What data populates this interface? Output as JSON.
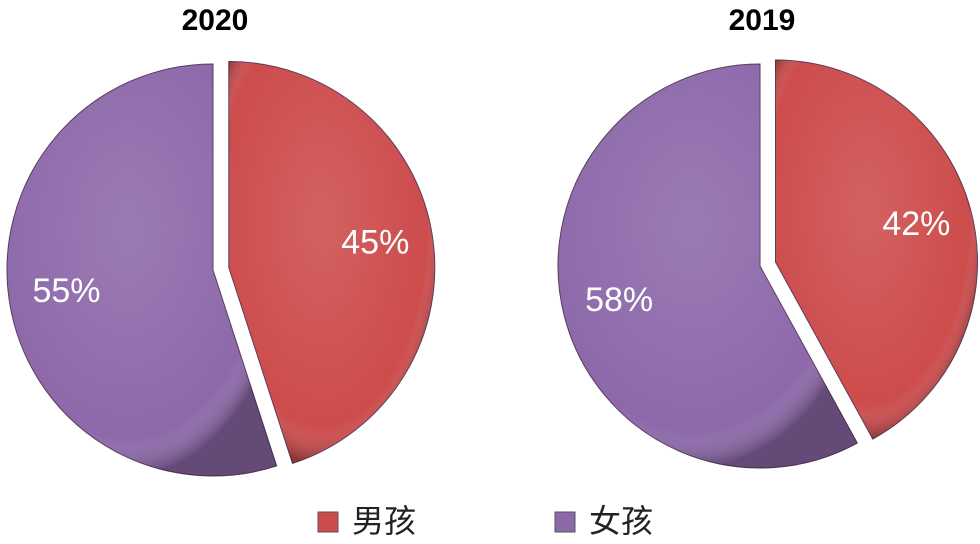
{
  "chart_data": [
    {
      "type": "pie",
      "title": "2020",
      "categories": [
        "男孩",
        "女孩"
      ],
      "values": [
        45,
        55
      ],
      "value_labels": [
        "45%",
        "55%"
      ],
      "colors": [
        "#cd4c4c",
        "#8d69aa"
      ]
    },
    {
      "type": "pie",
      "title": "2019",
      "categories": [
        "男孩",
        "女孩"
      ],
      "values": [
        42,
        58
      ],
      "value_labels": [
        "42%",
        "58%"
      ],
      "colors": [
        "#cd4c4c",
        "#8d69aa"
      ]
    }
  ]
}
